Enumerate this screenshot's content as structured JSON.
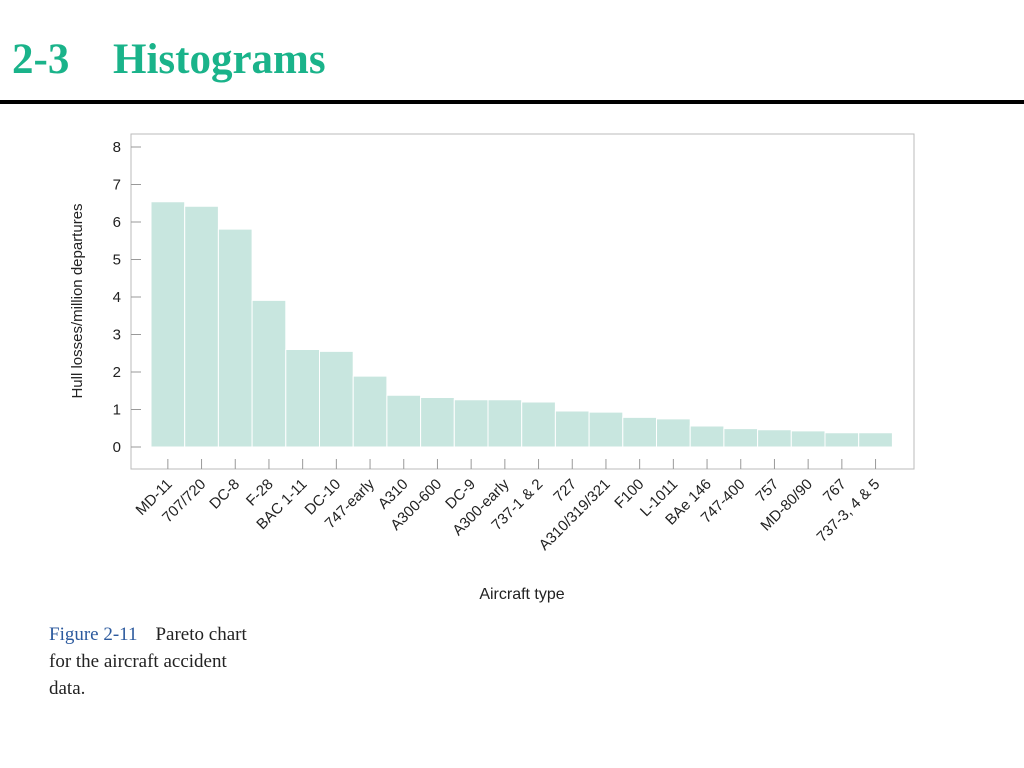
{
  "slide": {
    "section_number": "2-3",
    "section_title": "Histograms"
  },
  "figure": {
    "label": "Figure 2-11",
    "caption": "Pareto chart for the aircraft accident data."
  },
  "chart_data": {
    "type": "bar",
    "xlabel": "Aircraft type",
    "ylabel": "Hull losses/million departures",
    "ylim": [
      0,
      8
    ],
    "yticks": [
      "0",
      "1",
      "2",
      "3",
      "4",
      "5",
      "6",
      "7",
      "8"
    ],
    "grid": false,
    "categories": [
      "MD-11",
      "707/720",
      "DC-8",
      "F-28",
      "BAC 1-11",
      "DC-10",
      "747-early",
      "A310",
      "A300-600",
      "DC-9",
      "A300-early",
      "737-1 & 2",
      "727",
      "A310/319/321",
      "F100",
      "L-1011",
      "BAe 146",
      "747-400",
      "757",
      "MD-80/90",
      "767",
      "737-3, 4 & 5"
    ],
    "values": [
      6.54,
      6.42,
      5.81,
      3.91,
      2.6,
      2.55,
      1.89,
      1.38,
      1.32,
      1.26,
      1.26,
      1.2,
      0.96,
      0.93,
      0.79,
      0.75,
      0.56,
      0.49,
      0.46,
      0.43,
      0.38,
      0.38
    ],
    "colors": {
      "bar_fill": "#c8e6df",
      "bar_stroke": "#ffffff",
      "frame": "#bbbbbb"
    }
  }
}
